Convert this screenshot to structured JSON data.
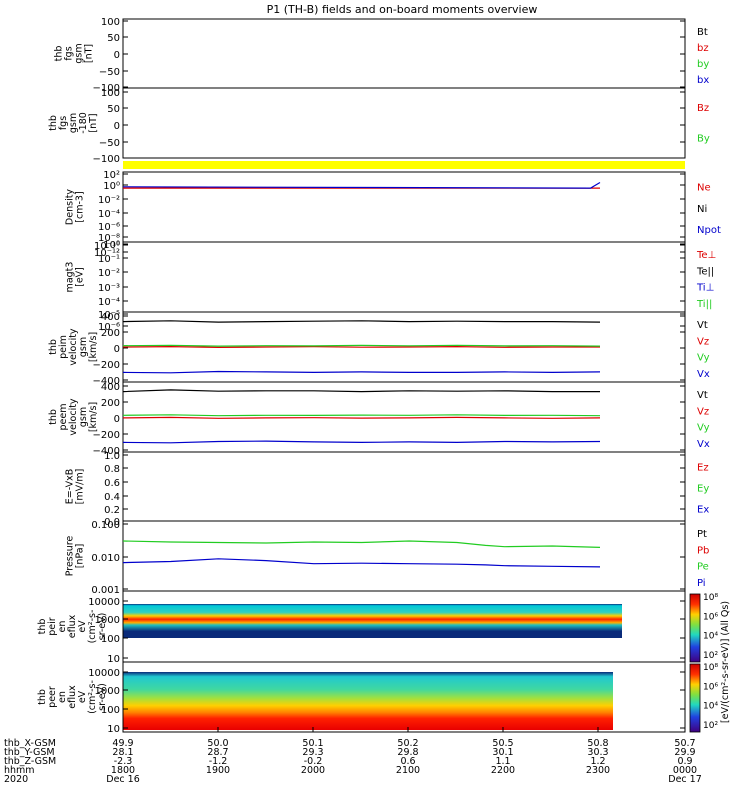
{
  "title": "P1 (TH-B) fields and on-board moments overview",
  "colors": {
    "black": "#000000",
    "red": "#dd0000",
    "green": "#22cc22",
    "blue": "#0000cc",
    "yellow": "#ffff00",
    "purple": "#8800aa"
  },
  "chart_data": [
    {
      "type": "line",
      "id": "fgs",
      "ylabel_lines": [
        "thb",
        "fgs",
        "gsm",
        "[nT]"
      ],
      "yticks": [
        "100",
        "50",
        "0",
        "−50",
        "−100"
      ],
      "ylim": [
        -100,
        100
      ],
      "legend": [
        {
          "name": "Bt",
          "color": "black"
        },
        {
          "name": "bz",
          "color": "red"
        },
        {
          "name": "by",
          "color": "green"
        },
        {
          "name": "bx",
          "color": "blue"
        }
      ],
      "series": []
    },
    {
      "type": "line",
      "id": "fgs_bz_by",
      "ylabel_lines": [
        "thb",
        "fgs",
        "gsm",
        "-180",
        "[nT]"
      ],
      "yticks": [
        "100",
        "50",
        "0",
        "−50",
        "−100"
      ],
      "ylim": [
        -125,
        100
      ],
      "legend": [
        {
          "name": "Bz",
          "color": "red"
        },
        {
          "name": "By",
          "color": "green"
        }
      ],
      "series": []
    },
    {
      "type": "line",
      "id": "density",
      "ylabel_lines": [
        "Density",
        "[cm-3]"
      ],
      "scale": "log",
      "yticks": [
        "10²",
        "10⁰",
        "10⁻²",
        "10⁻⁴",
        "10⁻⁶",
        "10⁻⁸",
        "10⁻¹⁰",
        "10⁻¹²"
      ],
      "legend": [
        {
          "name": "Ne",
          "color": "red"
        },
        {
          "name": "Ni",
          "color": "black"
        },
        {
          "name": "Npot",
          "color": "blue"
        }
      ],
      "series": [
        {
          "name": "Ne",
          "color": "red",
          "x": [
            0,
            5
          ],
          "y": [
            0.3,
            0.3
          ]
        },
        {
          "name": "Npot",
          "color": "blue",
          "x": [
            0,
            4.9,
            5
          ],
          "y": [
            0.5,
            0.3,
            3
          ]
        }
      ]
    },
    {
      "type": "line",
      "id": "temperature",
      "ylabel_lines": [
        "magt3",
        "[eV]"
      ],
      "scale": "log",
      "yticks": [
        "10⁰",
        "10⁻¹",
        "10⁻²",
        "10⁻³",
        "10⁻⁴",
        "10⁻⁵",
        "10⁻⁶"
      ],
      "legend": [
        {
          "name": "Te⊥",
          "color": "red"
        },
        {
          "name": "Te||",
          "color": "black"
        },
        {
          "name": "Ti⊥",
          "color": "blue"
        },
        {
          "name": "Ti||",
          "color": "green"
        }
      ],
      "series": []
    },
    {
      "type": "line",
      "id": "peim_velocity",
      "ylabel_lines": [
        "thb",
        "peim",
        "velocity",
        "gsm",
        "[km/s]"
      ],
      "yticks": [
        "400",
        "200",
        "0",
        "−200",
        "−400"
      ],
      "ylim": [
        -400,
        400
      ],
      "legend": [
        {
          "name": "Vt",
          "color": "black"
        },
        {
          "name": "Vz",
          "color": "red"
        },
        {
          "name": "Vy",
          "color": "green"
        },
        {
          "name": "Vx",
          "color": "blue"
        }
      ],
      "series": [
        {
          "name": "Vt",
          "color": "black",
          "x": [
            0,
            0.5,
            1,
            1.5,
            2,
            2.5,
            3,
            3.5,
            4,
            4.5,
            5
          ],
          "y": [
            290,
            300,
            285,
            290,
            295,
            300,
            290,
            295,
            290,
            290,
            285
          ]
        },
        {
          "name": "Vz",
          "color": "red",
          "x": [
            0,
            0.5,
            1,
            1.5,
            2,
            2.5,
            3,
            3.5,
            4,
            4.5,
            5
          ],
          "y": [
            0,
            5,
            -5,
            0,
            3,
            -2,
            0,
            5,
            -3,
            0,
            0
          ]
        },
        {
          "name": "Vy",
          "color": "green",
          "x": [
            0,
            0.5,
            1,
            1.5,
            2,
            2.5,
            3,
            3.5,
            4,
            4.5,
            5
          ],
          "y": [
            15,
            20,
            10,
            15,
            12,
            18,
            14,
            20,
            12,
            15,
            10
          ]
        },
        {
          "name": "Vx",
          "color": "blue",
          "x": [
            0,
            0.5,
            1,
            1.5,
            2,
            2.5,
            3,
            3.5,
            4,
            4.5,
            5
          ],
          "y": [
            -290,
            -295,
            -280,
            -285,
            -290,
            -285,
            -290,
            -290,
            -285,
            -290,
            -285
          ]
        }
      ]
    },
    {
      "type": "line",
      "id": "peem_velocity",
      "ylabel_lines": [
        "thb",
        "peem",
        "velocity",
        "gsm",
        "[km/s]"
      ],
      "yticks": [
        "400",
        "200",
        "0",
        "−200",
        "−400"
      ],
      "ylim": [
        -400,
        400
      ],
      "legend": [
        {
          "name": "Vt",
          "color": "black"
        },
        {
          "name": "Vz",
          "color": "red"
        },
        {
          "name": "Vy",
          "color": "green"
        },
        {
          "name": "Vx",
          "color": "blue"
        }
      ],
      "series": [
        {
          "name": "Vt",
          "color": "black",
          "x": [
            0,
            0.5,
            1,
            1.5,
            2,
            2.5,
            3,
            3.5,
            4,
            4.5,
            5
          ],
          "y": [
            290,
            310,
            295,
            300,
            300,
            290,
            300,
            295,
            300,
            290,
            290
          ]
        },
        {
          "name": "Vz",
          "color": "red",
          "x": [
            0,
            0.5,
            1,
            1.5,
            2,
            2.5,
            3,
            3.5,
            4,
            4.5,
            5
          ],
          "y": [
            -10,
            -5,
            -15,
            -10,
            -8,
            -12,
            -10,
            -5,
            -10,
            -15,
            -10
          ]
        },
        {
          "name": "Vy",
          "color": "green",
          "x": [
            0,
            0.5,
            1,
            1.5,
            2,
            2.5,
            3,
            3.5,
            4,
            4.5,
            5
          ],
          "y": [
            20,
            25,
            15,
            20,
            18,
            22,
            20,
            25,
            18,
            20,
            15
          ]
        },
        {
          "name": "Vx",
          "color": "blue",
          "x": [
            0,
            0.5,
            1,
            1.5,
            2,
            2.5,
            3,
            3.5,
            4,
            4.5,
            5
          ],
          "y": [
            -290,
            -295,
            -280,
            -275,
            -285,
            -290,
            -285,
            -290,
            -280,
            -285,
            -280
          ]
        }
      ]
    },
    {
      "type": "line",
      "id": "efield",
      "ylabel_lines": [
        "E=-VxB",
        "[mV/m]"
      ],
      "yticks": [
        "1.0",
        "0.8",
        "0.6",
        "0.4",
        "0.2",
        "0.0"
      ],
      "ylim": [
        0,
        1
      ],
      "legend": [
        {
          "name": "Ez",
          "color": "red"
        },
        {
          "name": "Ey",
          "color": "green"
        },
        {
          "name": "Ex",
          "color": "blue"
        }
      ],
      "series": []
    },
    {
      "type": "line",
      "id": "pressure",
      "ylabel_lines": [
        "Pressure",
        "[nPa]"
      ],
      "scale": "log",
      "yticks": [
        "0.100",
        "0.010",
        "0.001"
      ],
      "legend": [
        {
          "name": "Pt",
          "color": "black"
        },
        {
          "name": "Pb",
          "color": "red"
        },
        {
          "name": "Pe",
          "color": "green"
        },
        {
          "name": "Pi",
          "color": "blue"
        }
      ],
      "series": [
        {
          "name": "Pe",
          "color": "green",
          "x": [
            0,
            0.5,
            1,
            1.5,
            2,
            2.5,
            3,
            3.5,
            3.8,
            4,
            4.5,
            5
          ],
          "y": [
            0.03,
            0.028,
            0.027,
            0.026,
            0.028,
            0.027,
            0.03,
            0.027,
            0.022,
            0.02,
            0.021,
            0.019
          ]
        },
        {
          "name": "Pi",
          "color": "blue",
          "x": [
            0,
            0.5,
            1,
            1.5,
            2,
            2.5,
            3,
            3.5,
            3.8,
            4,
            4.5,
            5
          ],
          "y": [
            0.0065,
            0.007,
            0.0085,
            0.0075,
            0.006,
            0.0062,
            0.006,
            0.0058,
            0.0055,
            0.0052,
            0.005,
            0.0048
          ]
        }
      ]
    },
    {
      "type": "heatmap",
      "id": "peir_spec",
      "ylabel_lines": [
        "thb",
        "peir",
        "en",
        "eflux",
        "eV",
        "(cm²-s-",
        "sr-eV)"
      ],
      "yticks": [
        "10000",
        "1000",
        "100",
        "10"
      ],
      "scale": "log"
    },
    {
      "type": "heatmap",
      "id": "peer_spec",
      "ylabel_lines": [
        "thb",
        "peer",
        "en",
        "eflux",
        "eV",
        "(cm²-s-",
        "sr-eV)"
      ],
      "yticks": [
        "10000",
        "1000",
        "100",
        "10"
      ],
      "scale": "log"
    }
  ],
  "colorbars": [
    {
      "labels": [
        "10⁸",
        "10⁶",
        "10⁴",
        "10²"
      ]
    },
    {
      "labels": [
        "10⁸",
        "10⁶",
        "10⁴",
        "10²"
      ]
    }
  ],
  "colorbar_caption": "[eV/(cm²-s-sr-eV)] (All Qs)",
  "time_axis": {
    "row_labels": [
      "thb_X-GSM",
      "thb_Y-GSM",
      "thb_Z-GSM",
      "hhmm",
      "2020"
    ],
    "columns": [
      {
        "lines": [
          "49.9",
          "28.1",
          "-2.3",
          "1800",
          "Dec 16"
        ]
      },
      {
        "lines": [
          "50.0",
          "28.7",
          "-1.2",
          "1900",
          ""
        ]
      },
      {
        "lines": [
          "50.1",
          "29.3",
          "-0.2",
          "2000",
          ""
        ]
      },
      {
        "lines": [
          "50.2",
          "29.8",
          "0.6",
          "2100",
          ""
        ]
      },
      {
        "lines": [
          "50.5",
          "30.1",
          "1.1",
          "2200",
          ""
        ]
      },
      {
        "lines": [
          "50.8",
          "30.3",
          "1.2",
          "2300",
          ""
        ]
      },
      {
        "lines": [
          "50.7",
          "29.9",
          "0.9",
          "0000",
          "Dec 17"
        ]
      }
    ]
  }
}
